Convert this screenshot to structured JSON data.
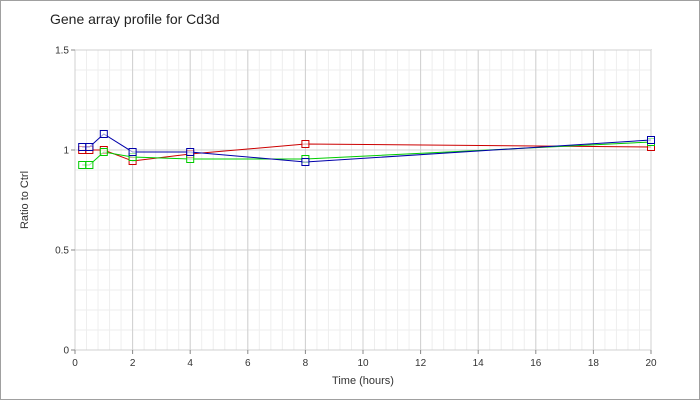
{
  "chart_data": {
    "type": "line",
    "title": "Gene array profile for Cd3d",
    "xlabel": "Time (hours)",
    "ylabel": "Ratio to Ctrl",
    "xlim": [
      0,
      20
    ],
    "ylim": [
      0,
      1.5
    ],
    "x_ticks": [
      0,
      2,
      4,
      6,
      8,
      10,
      12,
      14,
      16,
      18,
      20
    ],
    "y_ticks": [
      0,
      0.5,
      1,
      1.5
    ],
    "x_tick_labels": [
      "0",
      "2",
      "4",
      "6",
      "8",
      "10",
      "12",
      "14",
      "16",
      "18",
      "20"
    ],
    "y_tick_labels": [
      "0",
      "0.5",
      "1",
      "1.5"
    ],
    "grid": true,
    "legend": "none",
    "series": [
      {
        "color": "#cc0000",
        "x": [
          0.25,
          0.5,
          1,
          2,
          4,
          8,
          20
        ],
        "y": [
          1.0,
          1.0,
          1.0,
          0.945,
          0.98,
          1.03,
          1.015
        ]
      },
      {
        "color": "#00cc00",
        "x": [
          0.25,
          0.5,
          1,
          2,
          4,
          8,
          20
        ],
        "y": [
          0.925,
          0.925,
          0.99,
          0.965,
          0.955,
          0.955,
          1.04
        ]
      },
      {
        "color": "#0000aa",
        "x": [
          0.25,
          0.5,
          1,
          2,
          4,
          8,
          20
        ],
        "y": [
          1.015,
          1.015,
          1.08,
          0.99,
          0.99,
          0.94,
          1.05
        ]
      }
    ]
  }
}
